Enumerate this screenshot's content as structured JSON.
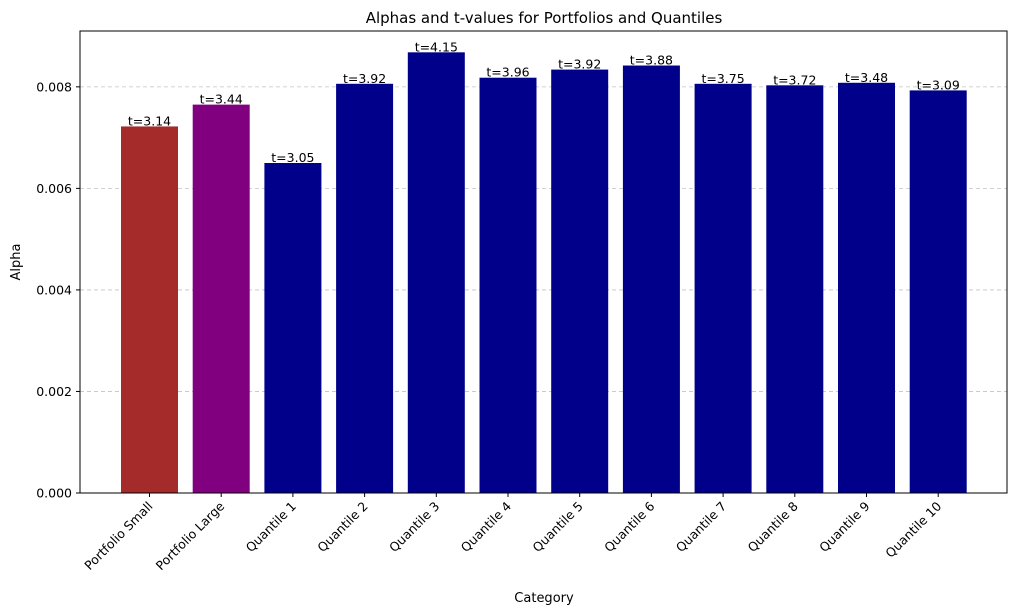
{
  "chart_data": {
    "type": "bar",
    "title": "Alphas and t-values for Portfolios and Quantiles",
    "xlabel": "Category",
    "ylabel": "Alpha",
    "ylim": [
      0,
      0.0091
    ],
    "yticks": [
      "0.000",
      "0.002",
      "0.004",
      "0.006",
      "0.008"
    ],
    "ytick_values": [
      0,
      0.002,
      0.004,
      0.006,
      0.008
    ],
    "grid": "y-dashed",
    "categories": [
      "Portfolio Small",
      "Portfolio Large",
      "Quantile 1",
      "Quantile 2",
      "Quantile 3",
      "Quantile 4",
      "Quantile 5",
      "Quantile 6",
      "Quantile 7",
      "Quantile 8",
      "Quantile 9",
      "Quantile 10"
    ],
    "values": [
      0.00722,
      0.00765,
      0.0065,
      0.00806,
      0.00868,
      0.00818,
      0.00834,
      0.00842,
      0.00806,
      0.00803,
      0.00808,
      0.00793
    ],
    "bar_labels": [
      "t=3.14",
      "t=3.44",
      "t=3.05",
      "t=3.92",
      "t=4.15",
      "t=3.96",
      "t=3.92",
      "t=3.88",
      "t=3.75",
      "t=3.72",
      "t=3.48",
      "t=3.09"
    ],
    "colors": [
      "#a52a2a",
      "#800080",
      "#00008b",
      "#00008b",
      "#00008b",
      "#00008b",
      "#00008b",
      "#00008b",
      "#00008b",
      "#00008b",
      "#00008b",
      "#00008b"
    ]
  }
}
